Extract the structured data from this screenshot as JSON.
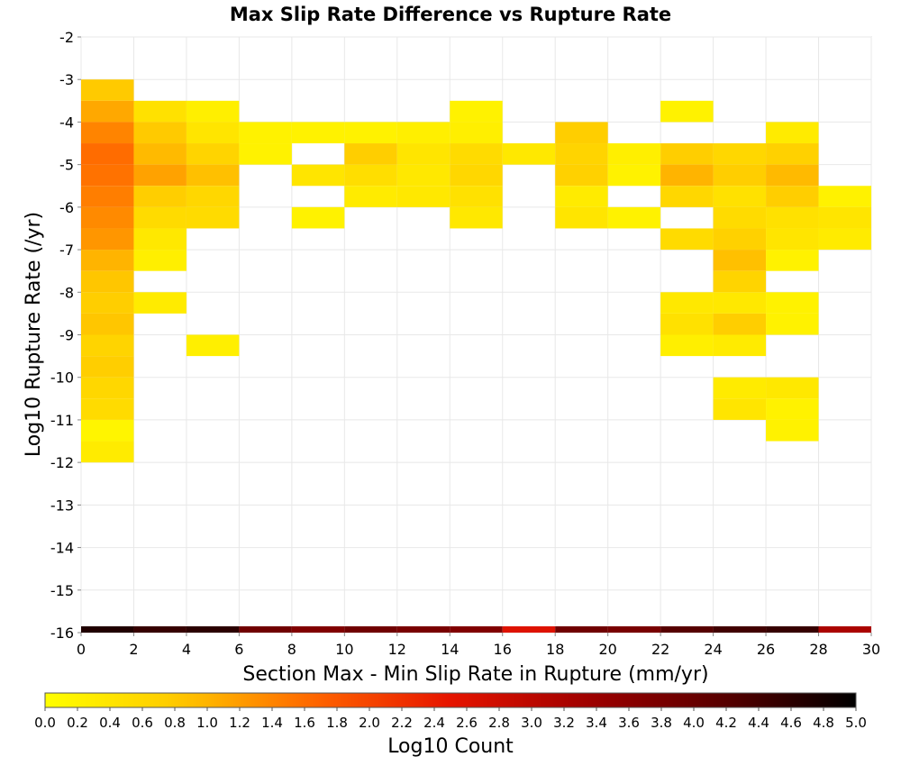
{
  "chart_data": {
    "type": "heatmap",
    "title": "Max Slip Rate Difference vs Rupture Rate",
    "xlabel": "Section Max - Min Slip Rate in Rupture (mm/yr)",
    "ylabel": "Log10 Rupture Rate (/yr)",
    "xlim": [
      0,
      30
    ],
    "ylim": [
      -16,
      -2
    ],
    "x_ticks": [
      "0",
      "2",
      "4",
      "6",
      "8",
      "10",
      "12",
      "14",
      "16",
      "18",
      "20",
      "22",
      "24",
      "26",
      "28",
      "30"
    ],
    "y_ticks": [
      "-2",
      "-3",
      "-4",
      "-5",
      "-6",
      "-7",
      "-8",
      "-9",
      "-10",
      "-11",
      "-12",
      "-13",
      "-14",
      "-15",
      "-16"
    ],
    "grid": true,
    "colorbar": {
      "label": "Log10 Count",
      "range": [
        0,
        5
      ],
      "ticks": [
        "0.0",
        "0.2",
        "0.4",
        "0.6",
        "0.8",
        "1.0",
        "1.2",
        "1.4",
        "1.6",
        "1.8",
        "2.0",
        "2.2",
        "2.4",
        "2.6",
        "2.8",
        "3.0",
        "3.2",
        "3.4",
        "3.6",
        "3.8",
        "4.0",
        "4.2",
        "4.4",
        "4.6",
        "4.8",
        "5.0"
      ],
      "colors": [
        "#ffff00",
        "#ffc800",
        "#ff6400",
        "#e61400",
        "#a00000",
        "#5a0000",
        "#000000"
      ]
    },
    "x_bin_width": 2,
    "y_bin_height": 0.5,
    "cells": [
      {
        "x": 0,
        "y": -3.0,
        "v": 0.8
      },
      {
        "x": 0,
        "y": -3.5,
        "v": 1.1
      },
      {
        "x": 0,
        "y": -4.0,
        "v": 1.4
      },
      {
        "x": 0,
        "y": -4.5,
        "v": 1.6
      },
      {
        "x": 0,
        "y": -5.0,
        "v": 1.55
      },
      {
        "x": 0,
        "y": -5.5,
        "v": 1.45
      },
      {
        "x": 0,
        "y": -6.0,
        "v": 1.35
      },
      {
        "x": 0,
        "y": -6.5,
        "v": 1.25
      },
      {
        "x": 0,
        "y": -7.0,
        "v": 1.0
      },
      {
        "x": 0,
        "y": -7.5,
        "v": 0.85
      },
      {
        "x": 0,
        "y": -8.0,
        "v": 0.75
      },
      {
        "x": 0,
        "y": -8.5,
        "v": 0.85
      },
      {
        "x": 0,
        "y": -9.0,
        "v": 0.65
      },
      {
        "x": 0,
        "y": -9.5,
        "v": 0.75
      },
      {
        "x": 0,
        "y": -10.0,
        "v": 0.6
      },
      {
        "x": 0,
        "y": -10.5,
        "v": 0.55
      },
      {
        "x": 0,
        "y": -11.0,
        "v": 0.15
      },
      {
        "x": 0,
        "y": -11.5,
        "v": 0.3
      },
      {
        "x": 2,
        "y": -3.5,
        "v": 0.45
      },
      {
        "x": 2,
        "y": -4.0,
        "v": 0.8
      },
      {
        "x": 2,
        "y": -4.5,
        "v": 0.95
      },
      {
        "x": 2,
        "y": -5.0,
        "v": 1.15
      },
      {
        "x": 2,
        "y": -5.5,
        "v": 0.75
      },
      {
        "x": 2,
        "y": -6.0,
        "v": 0.55
      },
      {
        "x": 2,
        "y": -6.5,
        "v": 0.35
      },
      {
        "x": 2,
        "y": -7.0,
        "v": 0.25
      },
      {
        "x": 2,
        "y": -8.0,
        "v": 0.3
      },
      {
        "x": 4,
        "y": -3.5,
        "v": 0.25
      },
      {
        "x": 4,
        "y": -4.0,
        "v": 0.4
      },
      {
        "x": 4,
        "y": -4.5,
        "v": 0.65
      },
      {
        "x": 4,
        "y": -5.0,
        "v": 0.9
      },
      {
        "x": 4,
        "y": -5.5,
        "v": 0.6
      },
      {
        "x": 4,
        "y": -6.0,
        "v": 0.55
      },
      {
        "x": 4,
        "y": -9.0,
        "v": 0.25
      },
      {
        "x": 6,
        "y": -4.0,
        "v": 0.2
      },
      {
        "x": 6,
        "y": -4.5,
        "v": 0.2
      },
      {
        "x": 8,
        "y": -4.0,
        "v": 0.2
      },
      {
        "x": 8,
        "y": -5.0,
        "v": 0.4
      },
      {
        "x": 8,
        "y": -6.0,
        "v": 0.2
      },
      {
        "x": 10,
        "y": -4.0,
        "v": 0.2
      },
      {
        "x": 10,
        "y": -4.5,
        "v": 0.75
      },
      {
        "x": 10,
        "y": -5.0,
        "v": 0.5
      },
      {
        "x": 10,
        "y": -5.5,
        "v": 0.3
      },
      {
        "x": 12,
        "y": -4.0,
        "v": 0.25
      },
      {
        "x": 12,
        "y": -4.5,
        "v": 0.4
      },
      {
        "x": 12,
        "y": -5.0,
        "v": 0.35
      },
      {
        "x": 12,
        "y": -5.5,
        "v": 0.35
      },
      {
        "x": 14,
        "y": -3.5,
        "v": 0.2
      },
      {
        "x": 14,
        "y": -4.0,
        "v": 0.25
      },
      {
        "x": 14,
        "y": -4.5,
        "v": 0.55
      },
      {
        "x": 14,
        "y": -5.0,
        "v": 0.6
      },
      {
        "x": 14,
        "y": -5.5,
        "v": 0.45
      },
      {
        "x": 14,
        "y": -6.0,
        "v": 0.35
      },
      {
        "x": 16,
        "y": -4.5,
        "v": 0.35
      },
      {
        "x": 18,
        "y": -4.0,
        "v": 0.75
      },
      {
        "x": 18,
        "y": -4.5,
        "v": 0.65
      },
      {
        "x": 18,
        "y": -5.0,
        "v": 0.7
      },
      {
        "x": 18,
        "y": -5.5,
        "v": 0.3
      },
      {
        "x": 18,
        "y": -6.0,
        "v": 0.4
      },
      {
        "x": 20,
        "y": -4.5,
        "v": 0.25
      },
      {
        "x": 20,
        "y": -5.0,
        "v": 0.2
      },
      {
        "x": 20,
        "y": -6.0,
        "v": 0.2
      },
      {
        "x": 22,
        "y": -3.5,
        "v": 0.2
      },
      {
        "x": 22,
        "y": -4.5,
        "v": 0.75
      },
      {
        "x": 22,
        "y": -5.0,
        "v": 1.0
      },
      {
        "x": 22,
        "y": -5.5,
        "v": 0.6
      },
      {
        "x": 22,
        "y": -6.5,
        "v": 0.55
      },
      {
        "x": 22,
        "y": -8.0,
        "v": 0.35
      },
      {
        "x": 22,
        "y": -8.5,
        "v": 0.45
      },
      {
        "x": 22,
        "y": -9.0,
        "v": 0.25
      },
      {
        "x": 24,
        "y": -4.5,
        "v": 0.6
      },
      {
        "x": 24,
        "y": -5.0,
        "v": 0.75
      },
      {
        "x": 24,
        "y": -5.5,
        "v": 0.45
      },
      {
        "x": 24,
        "y": -6.0,
        "v": 0.55
      },
      {
        "x": 24,
        "y": -6.5,
        "v": 0.7
      },
      {
        "x": 24,
        "y": -7.0,
        "v": 0.9
      },
      {
        "x": 24,
        "y": -7.5,
        "v": 0.65
      },
      {
        "x": 24,
        "y": -8.0,
        "v": 0.35
      },
      {
        "x": 24,
        "y": -8.5,
        "v": 0.75
      },
      {
        "x": 24,
        "y": -9.0,
        "v": 0.3
      },
      {
        "x": 24,
        "y": -10.0,
        "v": 0.3
      },
      {
        "x": 24,
        "y": -10.5,
        "v": 0.4
      },
      {
        "x": 26,
        "y": -4.0,
        "v": 0.3
      },
      {
        "x": 26,
        "y": -4.5,
        "v": 0.7
      },
      {
        "x": 26,
        "y": -5.0,
        "v": 0.95
      },
      {
        "x": 26,
        "y": -5.5,
        "v": 0.75
      },
      {
        "x": 26,
        "y": -6.0,
        "v": 0.45
      },
      {
        "x": 26,
        "y": -6.5,
        "v": 0.4
      },
      {
        "x": 26,
        "y": -7.0,
        "v": 0.2
      },
      {
        "x": 26,
        "y": -8.0,
        "v": 0.2
      },
      {
        "x": 26,
        "y": -8.5,
        "v": 0.2
      },
      {
        "x": 26,
        "y": -10.0,
        "v": 0.35
      },
      {
        "x": 26,
        "y": -10.5,
        "v": 0.2
      },
      {
        "x": 26,
        "y": -11.0,
        "v": 0.2
      },
      {
        "x": 28,
        "y": -5.5,
        "v": 0.2
      },
      {
        "x": 28,
        "y": -6.0,
        "v": 0.4
      },
      {
        "x": 28,
        "y": -6.5,
        "v": 0.3
      }
    ],
    "bottom_strip": [
      {
        "x": 0,
        "v": 4.7
      },
      {
        "x": 2,
        "v": 4.5
      },
      {
        "x": 4,
        "v": 4.6
      },
      {
        "x": 6,
        "v": 3.9
      },
      {
        "x": 8,
        "v": 3.7
      },
      {
        "x": 10,
        "v": 3.9
      },
      {
        "x": 12,
        "v": 3.8
      },
      {
        "x": 14,
        "v": 3.7
      },
      {
        "x": 16,
        "v": 2.6
      },
      {
        "x": 18,
        "v": 3.9
      },
      {
        "x": 20,
        "v": 3.8
      },
      {
        "x": 22,
        "v": 4.2
      },
      {
        "x": 24,
        "v": 4.4
      },
      {
        "x": 26,
        "v": 4.5
      },
      {
        "x": 28,
        "v": 3.2
      }
    ]
  }
}
